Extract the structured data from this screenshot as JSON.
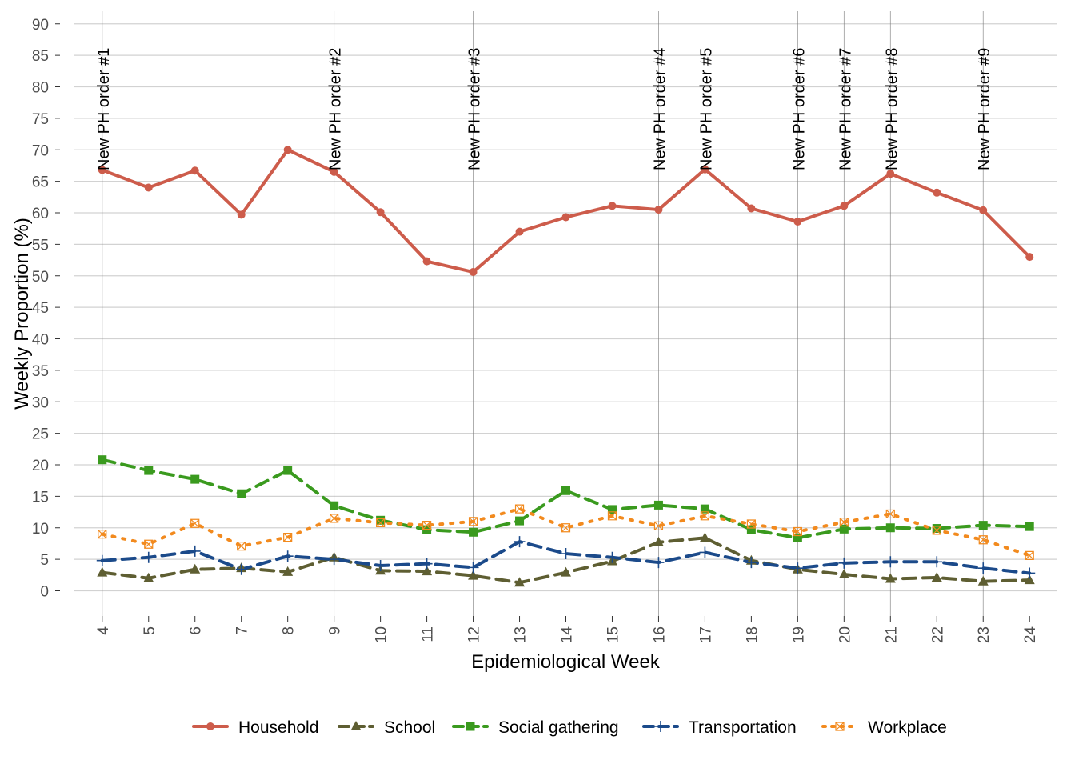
{
  "chart_data": {
    "type": "line",
    "xlabel": "Epidemiological Week",
    "ylabel": "Weekly Proportion (%)",
    "ylim": [
      -4,
      92
    ],
    "yticks": [
      0,
      5,
      10,
      15,
      20,
      25,
      30,
      35,
      40,
      45,
      50,
      55,
      60,
      65,
      70,
      75,
      80,
      85,
      90
    ],
    "x": [
      4,
      5,
      6,
      7,
      8,
      9,
      10,
      11,
      12,
      13,
      14,
      15,
      16,
      17,
      18,
      19,
      20,
      21,
      22,
      23,
      24
    ],
    "grid": true,
    "legend_position": "bottom",
    "series": [
      {
        "name": "Household",
        "color": "#CD5C4B",
        "style": "solid",
        "marker": "circle",
        "values": [
          66.8,
          64.0,
          66.7,
          59.7,
          70.0,
          66.5,
          60.1,
          52.3,
          50.6,
          57.0,
          59.3,
          61.1,
          60.5,
          66.9,
          60.7,
          58.6,
          61.1,
          66.2,
          63.2,
          60.4,
          53.0
        ]
      },
      {
        "name": "School",
        "color": "#5E5E32",
        "style": "dashed",
        "marker": "triangle",
        "values": [
          2.9,
          2.0,
          3.4,
          3.6,
          3.0,
          5.3,
          3.2,
          3.1,
          2.4,
          1.3,
          2.9,
          4.7,
          7.7,
          8.4,
          4.8,
          3.4,
          2.6,
          1.9,
          2.1,
          1.5,
          1.7
        ]
      },
      {
        "name": "Social gathering",
        "color": "#3A9A1E",
        "style": "dashed",
        "marker": "square",
        "values": [
          20.8,
          19.1,
          17.7,
          15.4,
          19.1,
          13.5,
          11.2,
          9.7,
          9.3,
          11.1,
          15.9,
          12.9,
          13.6,
          13.0,
          9.7,
          8.4,
          9.8,
          10.0,
          9.9,
          10.4,
          10.2
        ]
      },
      {
        "name": "Transportation",
        "color": "#1B4A8A",
        "style": "dashed",
        "marker": "plus",
        "values": [
          4.8,
          5.3,
          6.3,
          3.4,
          5.5,
          5.0,
          4.0,
          4.3,
          3.7,
          7.8,
          5.9,
          5.3,
          4.5,
          6.1,
          4.5,
          3.6,
          4.4,
          4.6,
          4.6,
          3.6,
          2.8
        ]
      },
      {
        "name": "Workplace",
        "color": "#F28A1E",
        "style": "dotted",
        "marker": "boxcross",
        "values": [
          9.0,
          7.4,
          10.7,
          7.1,
          8.5,
          11.5,
          10.8,
          10.4,
          11.0,
          13.0,
          10.0,
          11.9,
          10.3,
          11.9,
          10.6,
          9.4,
          10.9,
          12.2,
          9.6,
          8.1,
          5.6
        ]
      }
    ],
    "annotations": [
      {
        "x": 4,
        "label": "New PH order #1"
      },
      {
        "x": 9,
        "label": "New PH order #2"
      },
      {
        "x": 12,
        "label": "New PH order #3"
      },
      {
        "x": 16,
        "label": "New PH order #4"
      },
      {
        "x": 17,
        "label": "New PH order #5"
      },
      {
        "x": 19,
        "label": "New PH order #6"
      },
      {
        "x": 20,
        "label": "New PH order #7"
      },
      {
        "x": 21,
        "label": "New PH order #8"
      },
      {
        "x": 23,
        "label": "New PH order #9"
      }
    ]
  }
}
